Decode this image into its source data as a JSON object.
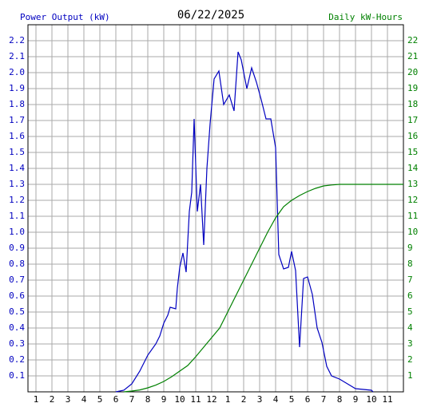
{
  "chart_data": {
    "type": "line",
    "title": "06/22/2025",
    "ylabel": "Power Output (kW)",
    "y2label": "Daily kW-Hours",
    "xlim": [
      0.5,
      24
    ],
    "xticks": [
      1,
      2,
      3,
      4,
      5,
      6,
      7,
      8,
      9,
      10,
      11,
      12,
      {
        "value": 13,
        "label": "1"
      },
      {
        "value": 14,
        "label": "2"
      },
      {
        "value": 15,
        "label": "3"
      },
      {
        "value": 16,
        "label": "4"
      },
      {
        "value": 17,
        "label": "5"
      },
      {
        "value": 18,
        "label": "6"
      },
      {
        "value": 19,
        "label": "7"
      },
      {
        "value": 20,
        "label": "8"
      },
      {
        "value": 21,
        "label": "9"
      },
      {
        "value": 22,
        "label": "10"
      },
      {
        "value": 23,
        "label": "11"
      }
    ],
    "ylim": [
      0,
      2.3
    ],
    "yticks": [
      0.1,
      0.2,
      0.3,
      0.4,
      0.5,
      0.6,
      0.7,
      0.8,
      0.9,
      {
        "value": 1,
        "label": "1.0"
      },
      1.1,
      1.2,
      1.3,
      1.4,
      1.5,
      1.6,
      1.7,
      1.8,
      1.9,
      {
        "value": 2,
        "label": "2.0"
      },
      2.1,
      2.2
    ],
    "y2lim": [
      0,
      23
    ],
    "y2ticks": [
      1,
      2,
      3,
      4,
      5,
      6,
      7,
      8,
      9,
      10,
      11,
      12,
      13,
      14,
      15,
      16,
      17,
      18,
      19,
      20,
      21,
      22
    ],
    "grid": true,
    "series": [
      {
        "color": "#0000c0",
        "x": [
          6,
          6.5,
          7,
          7.5,
          8,
          8.5,
          8.75,
          9,
          9.25,
          9.4,
          9.75,
          9.85,
          10,
          10.2,
          10.4,
          10.6,
          10.75,
          10.9,
          11.1,
          11.3,
          11.5,
          11.7,
          11.9,
          12.15,
          12.45,
          12.75,
          13.1,
          13.4,
          13.65,
          13.85,
          14.2,
          14.5,
          14.8,
          15.1,
          15.4,
          15.7,
          16,
          16.2,
          16.5,
          16.8,
          17,
          17.25,
          17.5,
          17.75,
          18,
          18.3,
          18.6,
          18.9,
          19.2,
          19.5,
          20,
          20.5,
          21,
          22,
          22.1
        ],
        "values": [
          0,
          0.01,
          0.05,
          0.13,
          0.23,
          0.3,
          0.35,
          0.43,
          0.48,
          0.53,
          0.52,
          0.65,
          0.78,
          0.87,
          0.75,
          1.13,
          1.25,
          1.71,
          1.13,
          1.3,
          0.92,
          1.4,
          1.68,
          1.96,
          2.01,
          1.8,
          1.86,
          1.76,
          2.13,
          2.08,
          1.9,
          2.03,
          1.94,
          1.83,
          1.71,
          1.71,
          1.53,
          0.86,
          0.77,
          0.78,
          0.88,
          0.76,
          0.28,
          0.71,
          0.72,
          0.61,
          0.4,
          0.31,
          0.16,
          0.1,
          0.08,
          0.05,
          0.02,
          0.01,
          0
        ]
      },
      {
        "color": "#008000",
        "axis": "y2",
        "x": [
          6.5,
          7,
          7.5,
          8,
          8.5,
          9,
          9.5,
          10,
          10.5,
          11,
          11.5,
          12,
          12.5,
          13,
          13.5,
          14,
          14.5,
          15,
          15.5,
          16,
          16.5,
          17,
          17.5,
          18,
          18.5,
          19,
          19.5,
          20,
          24
        ],
        "values": [
          0,
          0.05,
          0.12,
          0.25,
          0.42,
          0.65,
          0.95,
          1.3,
          1.65,
          2.2,
          2.8,
          3.4,
          4.0,
          5.0,
          6.0,
          7.0,
          8.0,
          9.0,
          10.0,
          10.9,
          11.6,
          12.0,
          12.3,
          12.55,
          12.75,
          12.9,
          12.96,
          13,
          13
        ]
      }
    ]
  }
}
